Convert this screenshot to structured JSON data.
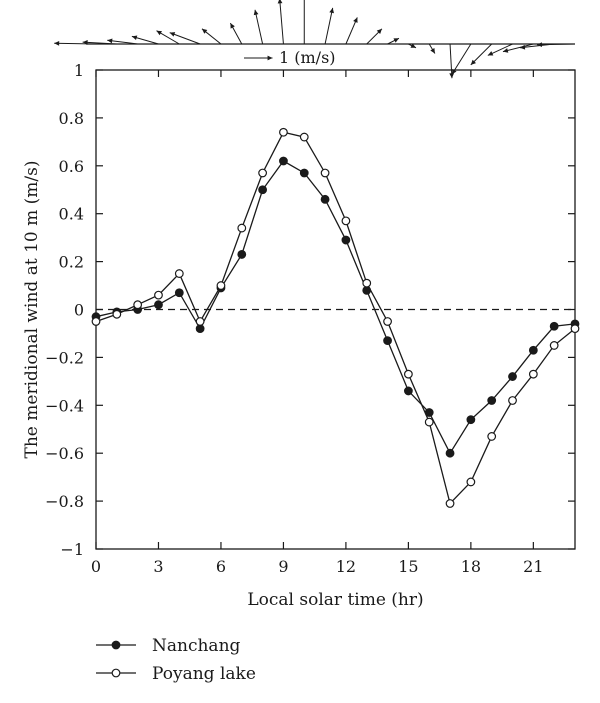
{
  "chart_data": {
    "type": "line",
    "xlabel": "Local solar time (hr)",
    "ylabel": "The meridional wind at 10 m (m/s)",
    "xlim": [
      0,
      23
    ],
    "ylim": [
      -1,
      1
    ],
    "xticks": [
      0,
      3,
      6,
      9,
      12,
      15,
      18,
      21
    ],
    "yticks": [
      1,
      0.8,
      0.6,
      0.4,
      0.2,
      0,
      -0.2,
      -0.4,
      -0.6,
      -0.8,
      -1
    ],
    "ytick_labels": [
      "1",
      "0.8",
      "0.6",
      "0.4",
      "0.2",
      "0",
      "−0.2",
      "−0.4",
      "−0.6",
      "−0.8",
      "−1"
    ],
    "zero_line": "dashed",
    "legend_position": "below-left",
    "x": [
      0,
      1,
      2,
      3,
      4,
      5,
      6,
      7,
      8,
      9,
      10,
      11,
      12,
      13,
      14,
      15,
      16,
      17,
      18,
      19,
      20,
      21,
      22,
      23
    ],
    "series": [
      {
        "name": "Nanchang",
        "marker": "filled-circle",
        "values": [
          -0.03,
          -0.01,
          0.0,
          0.02,
          0.07,
          -0.08,
          0.09,
          0.23,
          0.5,
          0.62,
          0.57,
          0.46,
          0.29,
          0.08,
          -0.13,
          -0.34,
          -0.43,
          -0.6,
          -0.46,
          -0.38,
          -0.28,
          -0.17,
          -0.07,
          -0.06
        ]
      },
      {
        "name": "Poyang lake",
        "marker": "open-circle",
        "values": [
          -0.05,
          -0.02,
          0.02,
          0.06,
          0.15,
          -0.05,
          0.1,
          0.34,
          0.57,
          0.74,
          0.72,
          0.57,
          0.37,
          0.11,
          -0.05,
          -0.27,
          -0.47,
          -0.81,
          -0.72,
          -0.53,
          -0.38,
          -0.27,
          -0.15,
          -0.08
        ]
      }
    ],
    "wind_vectors": {
      "scale_label": "1 (m/s)",
      "hours": [
        0,
        1,
        2,
        3,
        4,
        5,
        6,
        7,
        8,
        9,
        10,
        11,
        12,
        13,
        14,
        15,
        16,
        17,
        18,
        19,
        20,
        21,
        22,
        23
      ],
      "u": [
        -1.1,
        -0.9,
        -0.8,
        -0.7,
        -0.6,
        -0.8,
        -0.5,
        -0.3,
        -0.2,
        -0.1,
        0.0,
        0.2,
        0.3,
        0.4,
        0.3,
        0.2,
        0.15,
        0.05,
        -0.5,
        -0.55,
        -0.65,
        -0.8,
        -0.9,
        -1.0
      ],
      "v": [
        0.02,
        0.05,
        0.1,
        0.2,
        0.35,
        0.3,
        0.4,
        0.55,
        0.9,
        1.2,
        1.3,
        0.95,
        0.7,
        0.4,
        0.15,
        -0.1,
        -0.25,
        -0.9,
        -0.8,
        -0.55,
        -0.3,
        -0.2,
        -0.1,
        -0.02
      ]
    }
  }
}
